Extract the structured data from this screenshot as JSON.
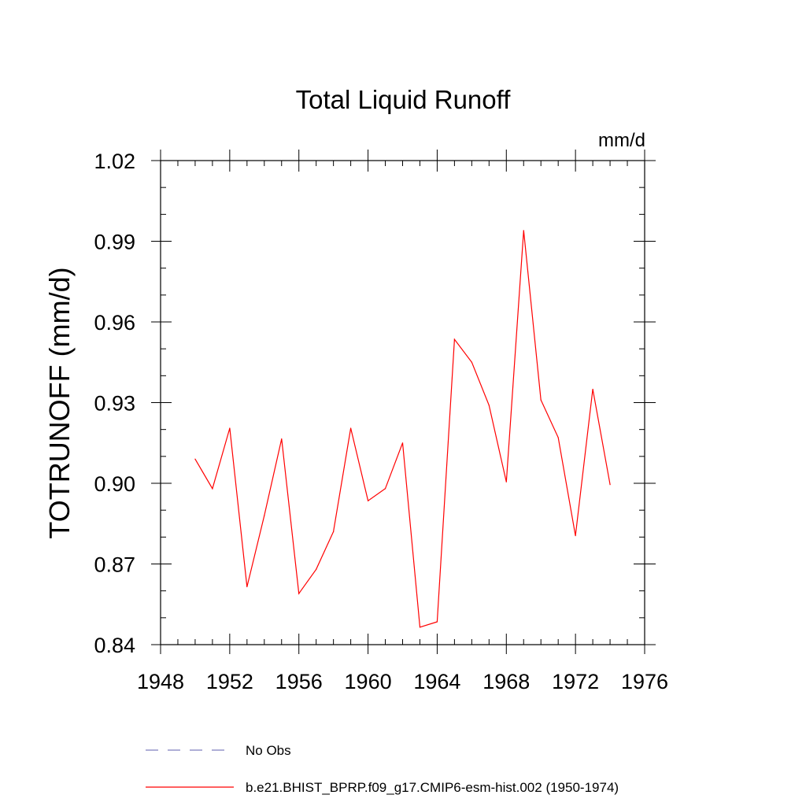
{
  "chart_data": {
    "type": "line",
    "title": "Total Liquid Runoff",
    "units": "mm/d",
    "xlabel": "",
    "ylabel": "TOTRUNOFF  (mm/d)",
    "xlim": [
      1948,
      1976
    ],
    "ylim": [
      0.84,
      1.02
    ],
    "x_ticks": [
      1948,
      1952,
      1956,
      1960,
      1964,
      1968,
      1972,
      1976
    ],
    "y_ticks": [
      0.84,
      0.87,
      0.9,
      0.93,
      0.96,
      0.99,
      1.02
    ],
    "x_tick_labels": [
      "1948",
      "1952",
      "1956",
      "1960",
      "1964",
      "1968",
      "1972",
      "1976"
    ],
    "y_tick_labels": [
      "0.84",
      "0.87",
      "0.90",
      "0.93",
      "0.96",
      "0.99",
      "1.02"
    ],
    "grid": false,
    "legend_position": "bottom",
    "legend": [
      {
        "label": "No Obs",
        "style": "dashed",
        "color": "#7f7fbf"
      },
      {
        "label": "b.e21.BHIST_BPRP.f09_g17.CMIP6-esm-hist.002 (1950-1974)",
        "style": "solid",
        "color": "#ff0000"
      }
    ],
    "x": [
      1950,
      1951,
      1952,
      1953,
      1954,
      1955,
      1956,
      1957,
      1958,
      1959,
      1960,
      1961,
      1962,
      1963,
      1964,
      1965,
      1966,
      1967,
      1968,
      1969,
      1970,
      1971,
      1972,
      1973,
      1974
    ],
    "series": [
      {
        "name": "b.e21.BHIST_BPRP.f09_g17.CMIP6-esm-hist.002 (1950-1974)",
        "color": "#ff0000",
        "values": [
          0.909,
          0.898,
          0.9205,
          0.8615,
          0.888,
          0.9165,
          0.859,
          0.868,
          0.882,
          0.9205,
          0.8935,
          0.898,
          0.915,
          0.8465,
          0.8485,
          0.9535,
          0.945,
          0.929,
          0.9005,
          0.994,
          0.931,
          0.917,
          0.8805,
          0.935,
          0.8995
        ]
      }
    ]
  }
}
